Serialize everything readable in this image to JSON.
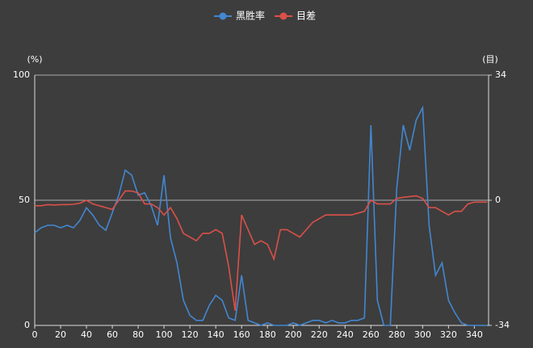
{
  "chart_data": {
    "type": "line",
    "x": [
      0,
      5,
      10,
      15,
      20,
      25,
      30,
      35,
      40,
      45,
      50,
      55,
      60,
      65,
      70,
      75,
      80,
      85,
      90,
      95,
      100,
      105,
      110,
      115,
      120,
      125,
      130,
      135,
      140,
      145,
      150,
      155,
      160,
      165,
      170,
      175,
      180,
      185,
      190,
      195,
      200,
      205,
      210,
      215,
      220,
      225,
      230,
      235,
      240,
      245,
      250,
      255,
      260,
      265,
      270,
      275,
      280,
      285,
      290,
      295,
      300,
      305,
      310,
      315,
      320,
      325,
      330,
      335,
      340,
      345,
      350
    ],
    "series": [
      {
        "name": "黑胜率",
        "color": "#4287d1",
        "values": [
          37,
          39,
          40,
          40,
          39,
          40,
          39,
          42,
          47,
          44,
          40,
          38,
          45,
          52,
          62,
          60,
          52,
          53,
          48,
          40,
          60,
          35,
          25,
          10,
          4,
          2,
          2,
          8,
          12,
          10,
          3,
          2,
          20,
          2,
          1,
          0,
          1,
          0,
          0,
          0,
          1,
          0,
          1,
          2,
          2,
          1,
          2,
          1,
          1,
          2,
          2,
          3,
          80,
          10,
          0,
          0,
          55,
          80,
          70,
          82,
          87,
          40,
          20,
          25,
          10,
          5,
          1,
          0,
          0,
          0,
          0
        ]
      },
      {
        "name": "目差",
        "color": "#db5049",
        "axis": "y2",
        "values": [
          -1.5,
          -1.5,
          -1.2,
          -1.3,
          -1.2,
          -1.2,
          -1.1,
          -0.8,
          0,
          -1,
          -1.5,
          -2,
          -2.5,
          0,
          2.5,
          2.5,
          2,
          -1,
          -1,
          -2,
          -4,
          -2,
          -5,
          -9,
          -10,
          -11,
          -9,
          -9,
          -8,
          -9,
          -18,
          -30,
          -4,
          -8,
          -12,
          -11,
          -12,
          -16,
          -8,
          -8,
          -9,
          -10,
          -8,
          -6,
          -5,
          -4,
          -4,
          -4,
          -4,
          -4,
          -3.5,
          -3,
          0,
          -1,
          -1,
          -1,
          0.5,
          0.8,
          1,
          1.2,
          0.5,
          -2,
          -2,
          -3,
          -4,
          -3,
          -3,
          -1,
          -0.5,
          -0.5,
          -0.5
        ]
      }
    ],
    "y_label": "(%)",
    "y2_label": "(目)",
    "xlim": [
      0,
      351
    ],
    "xticks": [
      0,
      20,
      40,
      60,
      80,
      100,
      120,
      140,
      160,
      180,
      200,
      220,
      240,
      260,
      280,
      300,
      320,
      340
    ],
    "ylim": [
      0,
      100
    ],
    "yticks": [
      0,
      50,
      100
    ],
    "y2lim": [
      -34,
      34
    ],
    "y2ticks": [
      -34,
      0,
      34
    ],
    "grid": true,
    "legend": "top"
  }
}
